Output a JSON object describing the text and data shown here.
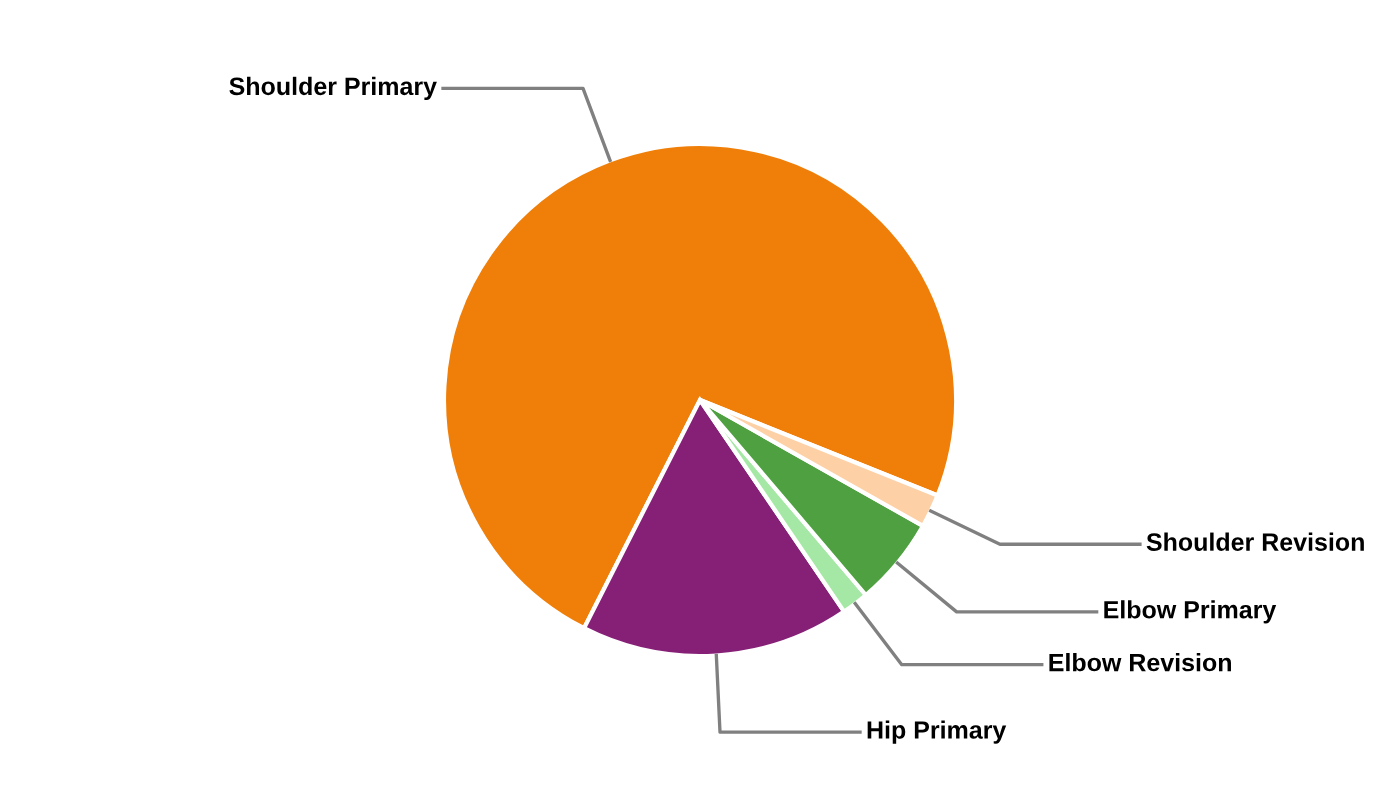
{
  "chart_data": {
    "type": "pie",
    "categories": [
      "Shoulder Primary",
      "Hip Primary",
      "Elbow Revision",
      "Elbow Primary",
      "Shoulder Revision"
    ],
    "values": [
      73.6,
      17.0,
      1.7,
      5.6,
      2.1
    ],
    "colors": [
      "#f07f09",
      "#862077",
      "#a5e8a5",
      "#4ea040",
      "#fdd0a6"
    ],
    "legend": false
  }
}
